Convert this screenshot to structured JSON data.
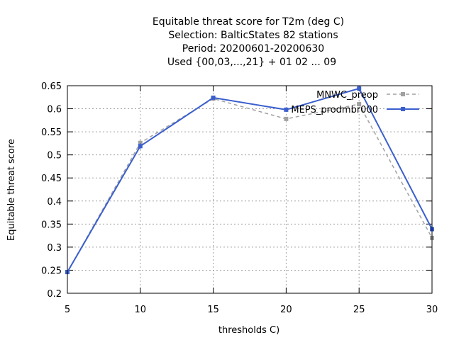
{
  "chart_data": {
    "type": "line",
    "title_lines": [
      "Equitable threat score  for T2m (deg C)",
      "Selection: BalticStates     82 stations",
      "Period: 20200601-20200630",
      "Used {00,03,...,21} + 01 02 ... 09"
    ],
    "xlabel": "thresholds C)",
    "ylabel": "Equitable threat score",
    "x": [
      5,
      10,
      15,
      20,
      25,
      30
    ],
    "x_ticks": [
      "5",
      "10",
      "15",
      "20",
      "25",
      "30"
    ],
    "y_ticks": [
      "0.2",
      "0.25",
      "0.3",
      "0.35",
      "0.4",
      "0.45",
      "0.5",
      "0.55",
      "0.6",
      "0.65"
    ],
    "xlim": [
      5,
      30
    ],
    "ylim": [
      0.2,
      0.65
    ],
    "grid": true,
    "legend_position": "top-right",
    "series": [
      {
        "name": "MNWC_preop",
        "color": "#a0a0a0",
        "style": "dashed",
        "values": [
          0.246,
          0.526,
          0.622,
          0.578,
          0.61,
          0.32
        ],
        "err": [
          0.004,
          0.006,
          0.004,
          0.004,
          0.005,
          0.004
        ]
      },
      {
        "name": "MEPS_prodmbr000",
        "color": "#3a5fcd",
        "style": "solid",
        "values": [
          0.246,
          0.519,
          0.624,
          0.598,
          0.644,
          0.339
        ],
        "err": [
          0.004,
          0.007,
          0.004,
          0.004,
          0.005,
          0.005
        ]
      }
    ]
  }
}
